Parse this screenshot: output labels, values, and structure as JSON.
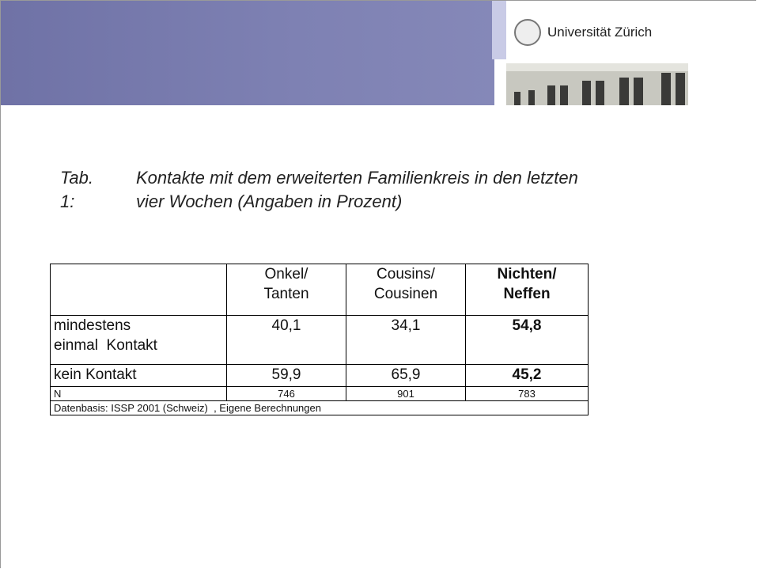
{
  "header": {
    "university": "Universität Zürich"
  },
  "caption": {
    "label": "Tab. 1:",
    "lines": [
      "Kontakte mit dem erweiterten Familienkreis in den letzten",
      "vier Wochen (Angaben in Prozent)"
    ]
  },
  "table": {
    "columns": [
      [
        "Onkel/",
        "Tanten"
      ],
      [
        "Cousins/",
        "Cousinen"
      ],
      [
        "Nichten/",
        "Neffen"
      ]
    ],
    "rows": [
      {
        "label": [
          "mindestens",
          "einmal  Kontakt"
        ],
        "cells": [
          "40,1",
          "34,1",
          "54,8"
        ]
      },
      {
        "label": [
          "kein Kontakt"
        ],
        "cells": [
          "59,9",
          "65,9",
          "45,2"
        ]
      },
      {
        "label": [
          "N"
        ],
        "cells": [
          "746",
          "901",
          "783"
        ]
      }
    ],
    "source": "Datenbasis: ISSP 2001 (Schweiz)  , Eigene Berechnungen"
  }
}
